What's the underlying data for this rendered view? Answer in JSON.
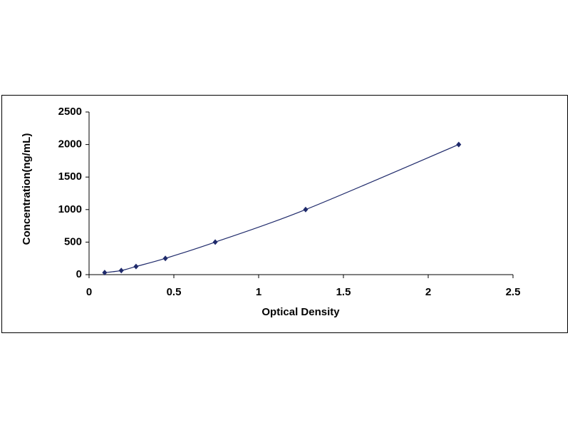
{
  "chart_data": {
    "type": "scatter",
    "x_label": "Optical Density",
    "y_label": "Concentration(ng/mL)",
    "x": [
      0.092,
      0.19,
      0.277,
      0.45,
      0.744,
      1.277,
      2.18
    ],
    "values": [
      31,
      63,
      125,
      250,
      500,
      1000,
      2000
    ],
    "color": "#1f2a6b",
    "line": true,
    "xlim": [
      0,
      2.5
    ],
    "xticks": [
      0,
      0.5,
      1,
      1.5,
      2,
      2.5
    ],
    "ylim": [
      0,
      2500
    ],
    "yticks": [
      0,
      500,
      1000,
      1500,
      2000,
      2500
    ],
    "grid": false
  }
}
